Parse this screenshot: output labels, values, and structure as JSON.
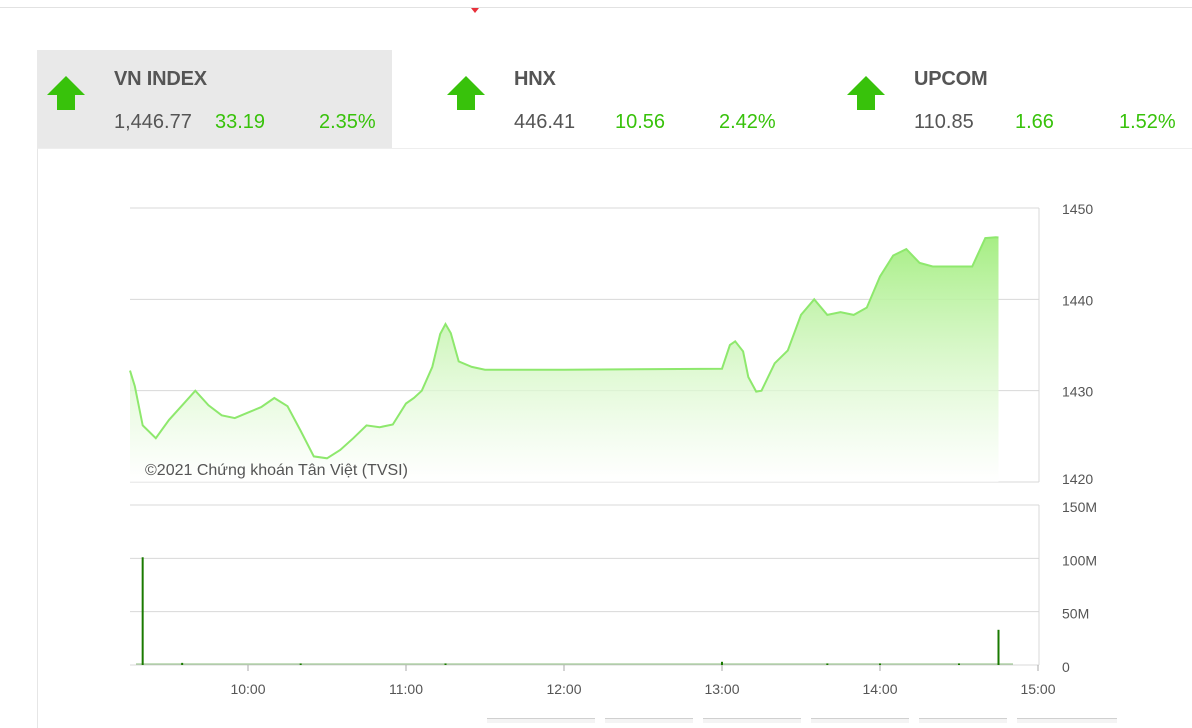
{
  "indices": [
    {
      "name": "VN INDEX",
      "value": "1,446.77",
      "change": "33.19",
      "percent": "2.35%",
      "direction": "up",
      "active": true
    },
    {
      "name": "HNX",
      "value": "446.41",
      "change": "10.56",
      "percent": "2.42%",
      "direction": "up",
      "active": false
    },
    {
      "name": "UPCOM",
      "value": "110.85",
      "change": "1.66",
      "percent": "1.52%",
      "direction": "up",
      "active": false
    }
  ],
  "colors": {
    "up": "#38c20b",
    "area_line": "#8ee86d",
    "area_fill": "#a6ee84",
    "volume_bar": "#1a7a00",
    "grid": "#d8d8d8",
    "text": "#555555"
  },
  "icons": {
    "direction_up": "arrow-up-icon"
  },
  "chart_data": [
    {
      "type": "area",
      "title": "",
      "watermark": "©2021 Chứng khoán Tân Việt (TVSI)",
      "x_unit": "time",
      "y_ticks": [
        "1450",
        "1440",
        "1430",
        "1420"
      ],
      "ylim": [
        1420,
        1450
      ],
      "x": [
        "09:15",
        "09:17",
        "09:20",
        "09:25",
        "09:30",
        "09:35",
        "09:40",
        "09:45",
        "09:50",
        "09:55",
        "10:00",
        "10:05",
        "10:10",
        "10:15",
        "10:20",
        "10:25",
        "10:30",
        "10:35",
        "10:40",
        "10:45",
        "10:50",
        "10:55",
        "11:00",
        "11:03",
        "11:06",
        "11:10",
        "11:13",
        "11:15",
        "11:17",
        "11:20",
        "11:25",
        "11:30",
        "12:00",
        "13:00",
        "13:03",
        "13:05",
        "13:08",
        "13:10",
        "13:13",
        "13:15",
        "13:20",
        "13:25",
        "13:30",
        "13:35",
        "13:40",
        "13:45",
        "13:50",
        "13:55",
        "14:00",
        "14:05",
        "14:10",
        "14:15",
        "14:20",
        "14:25",
        "14:30",
        "14:35",
        "14:40",
        "14:44",
        "14:45"
      ],
      "values": [
        1432.2,
        1430.5,
        1426.2,
        1424.8,
        1426.8,
        1428.4,
        1430.0,
        1428.4,
        1427.3,
        1427.0,
        1427.6,
        1428.2,
        1429.2,
        1428.3,
        1425.6,
        1422.8,
        1422.6,
        1423.5,
        1424.8,
        1426.2,
        1426.0,
        1426.3,
        1428.6,
        1429.2,
        1430.0,
        1432.6,
        1436.2,
        1437.3,
        1436.3,
        1433.2,
        1432.6,
        1432.3,
        1432.3,
        1432.4,
        1435.0,
        1435.4,
        1434.3,
        1431.5,
        1429.9,
        1430.0,
        1433.0,
        1434.4,
        1438.3,
        1440.0,
        1438.3,
        1438.6,
        1438.3,
        1439.1,
        1442.5,
        1444.8,
        1445.5,
        1444.0,
        1443.6,
        1443.6,
        1443.6,
        1443.6,
        1446.7,
        1446.8,
        1446.77
      ]
    },
    {
      "type": "bar",
      "series": "volume",
      "y_ticks": [
        "150M",
        "100M",
        "50M",
        "0"
      ],
      "ylim": [
        0,
        150
      ],
      "x_ticks": [
        "10:00",
        "11:00",
        "12:00",
        "13:00",
        "14:00",
        "15:00"
      ],
      "bars": [
        {
          "time": "09:20",
          "value": 101
        },
        {
          "time": "09:35",
          "value": 2
        },
        {
          "time": "10:20",
          "value": 1.5
        },
        {
          "time": "11:15",
          "value": 1.5
        },
        {
          "time": "13:00",
          "value": 3
        },
        {
          "time": "13:40",
          "value": 1.5
        },
        {
          "time": "14:00",
          "value": 1.5
        },
        {
          "time": "14:30",
          "value": 1.5
        },
        {
          "time": "14:45",
          "value": 33
        }
      ]
    }
  ]
}
